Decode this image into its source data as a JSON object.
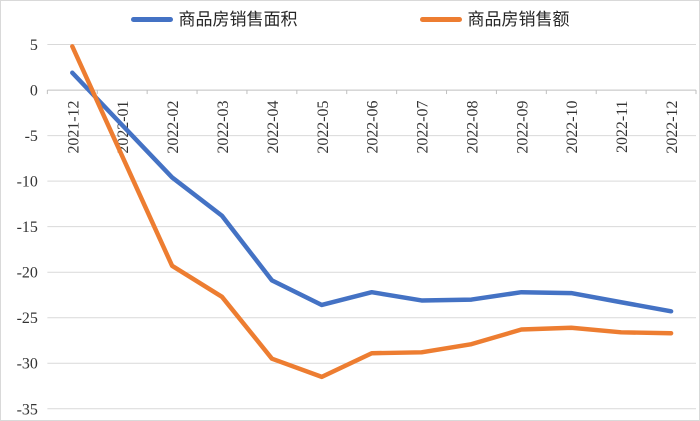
{
  "legend": {
    "items": [
      {
        "key": "sales-area",
        "label": "商品房销售面积",
        "color": "#4472C4"
      },
      {
        "key": "sales-amount",
        "label": "商品房销售额",
        "color": "#ED7D31"
      }
    ]
  },
  "chart_data": {
    "type": "line",
    "title": "",
    "xlabel": "",
    "ylabel": "",
    "categories": [
      "2021-12",
      "2022-01",
      "2022-02",
      "2022-03",
      "2022-04",
      "2022-05",
      "2022-06",
      "2022-07",
      "2022-08",
      "2022-09",
      "2022-10",
      "2022-11",
      "2022-12"
    ],
    "series": [
      {
        "key": "sales-area",
        "name": "商品房销售面积",
        "color": "#4472C4",
        "values": [
          1.9,
          null,
          -9.6,
          -13.8,
          -20.9,
          -23.6,
          -22.2,
          -23.1,
          -23.0,
          -22.2,
          -22.3,
          -23.3,
          -24.3
        ]
      },
      {
        "key": "sales-amount",
        "name": "商品房销售额",
        "color": "#ED7D31",
        "values": [
          4.8,
          null,
          -19.3,
          -22.7,
          -29.5,
          -31.5,
          -28.9,
          -28.8,
          -27.9,
          -26.3,
          -26.1,
          -26.6,
          -26.7
        ]
      }
    ],
    "ylim": [
      -35,
      5
    ],
    "y_ticks": [
      5,
      0,
      -5,
      -10,
      -15,
      -20,
      -25,
      -30,
      -35
    ],
    "grid": "horizontal",
    "legend_position": "top",
    "x_label_rotation": -90,
    "grid_color": "#d9d9d9",
    "axis_color": "#bfbfbf",
    "tick_label_color": "#333333"
  }
}
